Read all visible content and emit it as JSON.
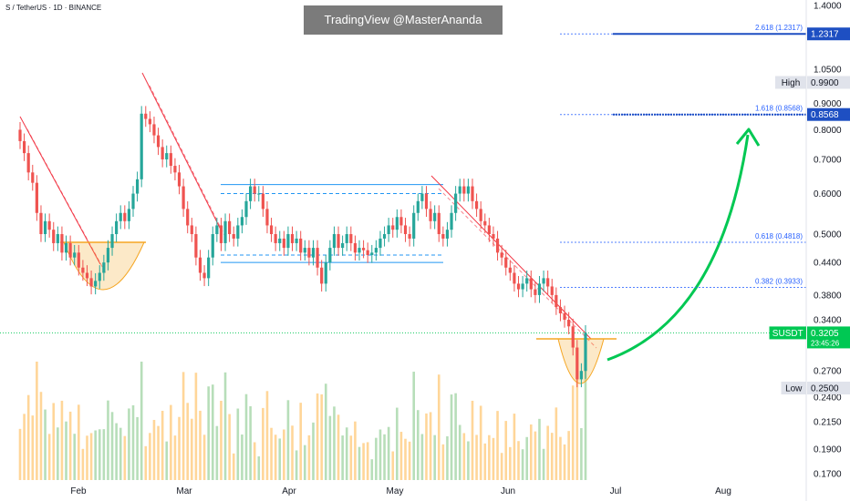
{
  "header": {
    "symbol_line": "S / TetherUS · 1D · BINANCE",
    "watermark": "TradingView @MasterAnanda"
  },
  "chart_data": {
    "type": "candlestick",
    "title": "S / TetherUS · 1D · BINANCE",
    "y_scale": "log",
    "ylim": [
      0.165,
      1.45
    ],
    "x_ticks": [
      "Feb",
      "Mar",
      "Apr",
      "May",
      "Jun",
      "Jul",
      "Aug"
    ],
    "y_ticks": [
      1.4,
      1.05,
      0.99,
      0.9,
      0.8,
      0.7,
      0.6,
      0.5,
      0.44,
      0.38,
      0.34,
      0.27,
      0.24,
      0.215,
      0.19,
      0.17
    ],
    "y_tick_labels": [
      "1.4000",
      "1.0500",
      "0.9900",
      "0.9000",
      "0.8000",
      "0.7000",
      "0.6000",
      "0.5000",
      "0.4400",
      "0.3800",
      "0.3400",
      "0.2700",
      "0.2400",
      "0.2150",
      "0.1900",
      "0.1700"
    ],
    "colors": {
      "up": "#26a69a",
      "down": "#ef5350",
      "fib": "#2962ff",
      "arrow": "#00c853",
      "trend": "#f23645",
      "range": "#2196f3",
      "cup": "#f5a623"
    },
    "candles_close": [
      0.76,
      0.72,
      0.66,
      0.63,
      0.55,
      0.5,
      0.53,
      0.51,
      0.48,
      0.5,
      0.46,
      0.48,
      0.45,
      0.46,
      0.43,
      0.42,
      0.41,
      0.395,
      0.405,
      0.42,
      0.44,
      0.47,
      0.5,
      0.53,
      0.55,
      0.53,
      0.56,
      0.6,
      0.64,
      0.86,
      0.84,
      0.82,
      0.78,
      0.74,
      0.7,
      0.72,
      0.68,
      0.66,
      0.62,
      0.56,
      0.52,
      0.5,
      0.45,
      0.42,
      0.41,
      0.45,
      0.5,
      0.52,
      0.48,
      0.53,
      0.5,
      0.49,
      0.52,
      0.54,
      0.58,
      0.62,
      0.6,
      0.6,
      0.56,
      0.52,
      0.5,
      0.48,
      0.49,
      0.47,
      0.5,
      0.48,
      0.49,
      0.46,
      0.47,
      0.45,
      0.47,
      0.43,
      0.4,
      0.44,
      0.47,
      0.5,
      0.47,
      0.48,
      0.5,
      0.48,
      0.46,
      0.47,
      0.465,
      0.455,
      0.46,
      0.47,
      0.49,
      0.5,
      0.52,
      0.51,
      0.54,
      0.52,
      0.5,
      0.49,
      0.55,
      0.58,
      0.6,
      0.56,
      0.53,
      0.55,
      0.5,
      0.49,
      0.51,
      0.55,
      0.6,
      0.62,
      0.6,
      0.62,
      0.58,
      0.56,
      0.53,
      0.52,
      0.5,
      0.49,
      0.46,
      0.45,
      0.43,
      0.42,
      0.4,
      0.39,
      0.4,
      0.41,
      0.39,
      0.38,
      0.4,
      0.41,
      0.395,
      0.38,
      0.36,
      0.35,
      0.34,
      0.33,
      0.3,
      0.26,
      0.27,
      0.3205
    ],
    "range_lines": [
      0.625,
      0.6,
      0.455,
      0.44
    ],
    "fib_levels": [
      {
        "label": "2.618 (1.2317)",
        "value": 1.2317
      },
      {
        "label": "1.618 (0.8568)",
        "value": 0.8568
      },
      {
        "label": "0.618 (0.4818)",
        "value": 0.4818
      },
      {
        "label": "0.382 (0.3933)",
        "value": 0.3933
      }
    ],
    "price_tags": [
      {
        "label": "",
        "price": "1.2317",
        "value": 1.2317,
        "style": "blue"
      },
      {
        "label": "High",
        "price": "0.9900",
        "value": 0.99,
        "style": "gray"
      },
      {
        "label": "",
        "price": "0.8568",
        "value": 0.8568,
        "style": "blue"
      },
      {
        "label": "SUSDT",
        "price": "0.3205",
        "value": 0.3205,
        "style": "green",
        "countdown": "23:45:26"
      },
      {
        "label": "Low",
        "price": "0.2500",
        "value": 0.25,
        "style": "gray"
      }
    ]
  }
}
